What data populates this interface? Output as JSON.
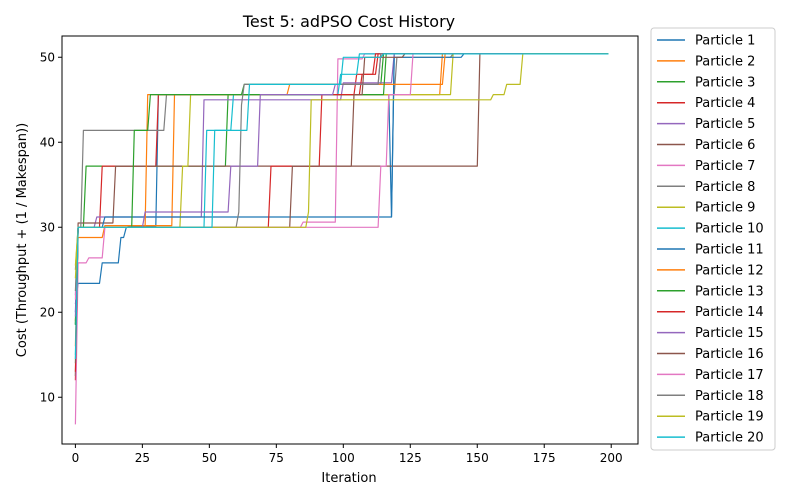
{
  "chart_data": {
    "type": "line",
    "title": "Test 5: adPSO Cost History",
    "xlabel": "Iteration",
    "ylabel": "Cost (Throughput + (1 / Makespan))",
    "xlim": [
      -5,
      210
    ],
    "ylim": [
      4.5,
      52.5
    ],
    "xticks": [
      0,
      25,
      50,
      75,
      100,
      125,
      150,
      175,
      200
    ],
    "yticks": [
      10,
      20,
      30,
      40,
      50
    ],
    "grid": false,
    "legend_position": "outside-right",
    "series": [
      {
        "name": "Particle 1",
        "color": "#1f77b4",
        "points": [
          [
            0,
            21
          ],
          [
            1,
            23.4
          ],
          [
            9,
            23.4
          ],
          [
            10,
            25.8
          ],
          [
            16,
            25.8
          ],
          [
            17,
            28.8
          ],
          [
            18,
            28.8
          ],
          [
            19,
            30
          ],
          [
            20,
            30.1
          ],
          [
            30,
            30.1
          ],
          [
            31,
            45.6
          ],
          [
            117,
            45.6
          ],
          [
            118,
            31.2
          ],
          [
            119,
            50.4
          ],
          [
            199,
            50.4
          ]
        ]
      },
      {
        "name": "Particle 2",
        "color": "#ff7f0e",
        "points": [
          [
            0,
            19
          ],
          [
            1,
            28.8
          ],
          [
            10,
            28.8
          ],
          [
            11,
            30.2
          ],
          [
            36,
            30.2
          ],
          [
            37,
            45.6
          ],
          [
            136,
            45.6
          ],
          [
            137,
            50.4
          ],
          [
            199,
            50.4
          ]
        ]
      },
      {
        "name": "Particle 3",
        "color": "#2ca02c",
        "points": [
          [
            0,
            18.6
          ],
          [
            1,
            30
          ],
          [
            3,
            30
          ],
          [
            4,
            37.2
          ],
          [
            56,
            37.2
          ],
          [
            57,
            45.6
          ],
          [
            62,
            45.6
          ],
          [
            63,
            46.8
          ],
          [
            114,
            46.8
          ],
          [
            115,
            50.4
          ],
          [
            199,
            50.4
          ]
        ]
      },
      {
        "name": "Particle 4",
        "color": "#d62728",
        "points": [
          [
            0,
            12
          ],
          [
            1,
            30
          ],
          [
            9,
            30
          ],
          [
            10,
            37.2
          ],
          [
            30,
            37.2
          ],
          [
            31,
            45.6
          ],
          [
            104,
            45.6
          ],
          [
            105,
            48
          ],
          [
            112,
            48
          ],
          [
            113,
            50.4
          ],
          [
            199,
            50.4
          ]
        ]
      },
      {
        "name": "Particle 5",
        "color": "#9467bd",
        "points": [
          [
            0,
            22
          ],
          [
            1,
            30
          ],
          [
            7,
            30
          ],
          [
            8,
            31.2
          ],
          [
            47,
            31.2
          ],
          [
            48,
            45
          ],
          [
            99,
            45
          ],
          [
            100,
            47
          ],
          [
            118,
            47
          ],
          [
            119,
            50.4
          ],
          [
            199,
            50.4
          ]
        ]
      },
      {
        "name": "Particle 6",
        "color": "#8c564b",
        "points": [
          [
            0,
            12.5
          ],
          [
            1,
            30.5
          ],
          [
            14,
            30.5
          ],
          [
            15,
            37.2
          ],
          [
            150,
            37.2
          ],
          [
            151,
            50.4
          ],
          [
            199,
            50.4
          ]
        ]
      },
      {
        "name": "Particle 7",
        "color": "#e377c2",
        "points": [
          [
            0,
            6.8
          ],
          [
            1,
            25.8
          ],
          [
            4,
            25.8
          ],
          [
            5,
            26.4
          ],
          [
            10,
            26.4
          ],
          [
            11,
            30
          ],
          [
            84,
            30
          ],
          [
            85,
            30.6
          ],
          [
            97,
            30.6
          ],
          [
            98,
            49.8
          ],
          [
            107,
            49.8
          ],
          [
            108,
            50.4
          ],
          [
            199,
            50.4
          ]
        ]
      },
      {
        "name": "Particle 8",
        "color": "#7f7f7f",
        "points": [
          [
            0,
            25
          ],
          [
            1,
            30
          ],
          [
            2,
            30
          ],
          [
            3,
            41.4
          ],
          [
            33,
            41.4
          ],
          [
            34,
            45.6
          ],
          [
            119,
            45.6
          ],
          [
            120,
            50
          ],
          [
            140,
            50
          ],
          [
            141,
            50.4
          ],
          [
            199,
            50.4
          ]
        ]
      },
      {
        "name": "Particle 9",
        "color": "#bcbd22",
        "points": [
          [
            0,
            25.5
          ],
          [
            1,
            30
          ],
          [
            39,
            30
          ],
          [
            40,
            37.2
          ],
          [
            42,
            37.2
          ],
          [
            43,
            45.6
          ],
          [
            140,
            45.6
          ],
          [
            141,
            50.4
          ],
          [
            199,
            50.4
          ]
        ]
      },
      {
        "name": "Particle 10",
        "color": "#17becf",
        "points": [
          [
            0,
            15
          ],
          [
            1,
            30
          ],
          [
            48,
            30
          ],
          [
            49,
            41.4
          ],
          [
            58,
            41.4
          ],
          [
            59,
            45.6
          ],
          [
            98,
            45.6
          ],
          [
            99,
            48
          ],
          [
            105,
            48
          ],
          [
            106,
            50.4
          ],
          [
            199,
            50.4
          ]
        ]
      },
      {
        "name": "Particle 11",
        "color": "#1f77b4",
        "points": [
          [
            0,
            20
          ],
          [
            1,
            30
          ],
          [
            10,
            30
          ],
          [
            11,
            31.2
          ],
          [
            118,
            31.2
          ],
          [
            119,
            50
          ],
          [
            144,
            50
          ],
          [
            145,
            50.4
          ],
          [
            199,
            50.4
          ]
        ]
      },
      {
        "name": "Particle 12",
        "color": "#ff7f0e",
        "points": [
          [
            0,
            16
          ],
          [
            1,
            30
          ],
          [
            26,
            30
          ],
          [
            27,
            45.6
          ],
          [
            79,
            45.6
          ],
          [
            80,
            46.8
          ],
          [
            137,
            46.8
          ],
          [
            138,
            50.4
          ],
          [
            199,
            50.4
          ]
        ]
      },
      {
        "name": "Particle 13",
        "color": "#2ca02c",
        "points": [
          [
            0,
            18.5
          ],
          [
            1,
            30
          ],
          [
            21,
            30
          ],
          [
            22,
            41.4
          ],
          [
            27,
            41.4
          ],
          [
            28,
            45.6
          ],
          [
            115,
            45.6
          ],
          [
            116,
            50.4
          ],
          [
            199,
            50.4
          ]
        ]
      },
      {
        "name": "Particle 14",
        "color": "#d62728",
        "points": [
          [
            0,
            13
          ],
          [
            1,
            30
          ],
          [
            72,
            30
          ],
          [
            73,
            37.2
          ],
          [
            91,
            37.2
          ],
          [
            92,
            45.6
          ],
          [
            106,
            45.6
          ],
          [
            107,
            48
          ],
          [
            111,
            48
          ],
          [
            112,
            50.4
          ],
          [
            199,
            50.4
          ]
        ]
      },
      {
        "name": "Particle 15",
        "color": "#9467bd",
        "points": [
          [
            0,
            19.5
          ],
          [
            1,
            30
          ],
          [
            25,
            30
          ],
          [
            26,
            31.8
          ],
          [
            57,
            31.8
          ],
          [
            58,
            37.2
          ],
          [
            68,
            37.2
          ],
          [
            69,
            45.6
          ],
          [
            96,
            45.6
          ],
          [
            97,
            46.8
          ],
          [
            113,
            46.8
          ],
          [
            114,
            50.4
          ],
          [
            199,
            50.4
          ]
        ]
      },
      {
        "name": "Particle 16",
        "color": "#8c564b",
        "points": [
          [
            0,
            14
          ],
          [
            1,
            30
          ],
          [
            80,
            30
          ],
          [
            81,
            37.2
          ],
          [
            103,
            37.2
          ],
          [
            104,
            45.6
          ],
          [
            107,
            45.6
          ],
          [
            108,
            50
          ],
          [
            122,
            50
          ],
          [
            123,
            50.4
          ],
          [
            199,
            50.4
          ]
        ]
      },
      {
        "name": "Particle 17",
        "color": "#e377c2",
        "points": [
          [
            0,
            21.5
          ],
          [
            1,
            30
          ],
          [
            113,
            30
          ],
          [
            114,
            37.2
          ],
          [
            116,
            37.2
          ],
          [
            117,
            45.6
          ],
          [
            125,
            45.6
          ],
          [
            126,
            50.4
          ],
          [
            199,
            50.4
          ]
        ]
      },
      {
        "name": "Particle 18",
        "color": "#7f7f7f",
        "points": [
          [
            0,
            22.5
          ],
          [
            1,
            30
          ],
          [
            60,
            30
          ],
          [
            61,
            31.8
          ],
          [
            62,
            44.4
          ],
          [
            63,
            46.8
          ],
          [
            113,
            46.8
          ],
          [
            114,
            50.4
          ],
          [
            199,
            50.4
          ]
        ]
      },
      {
        "name": "Particle 19",
        "color": "#bcbd22",
        "points": [
          [
            0,
            24
          ],
          [
            1,
            30
          ],
          [
            86,
            30
          ],
          [
            87,
            31.8
          ],
          [
            88,
            45
          ],
          [
            155,
            45
          ],
          [
            156,
            45.6
          ],
          [
            160,
            45.6
          ],
          [
            161,
            46.8
          ],
          [
            166,
            46.8
          ],
          [
            167,
            50.4
          ],
          [
            199,
            50.4
          ]
        ]
      },
      {
        "name": "Particle 20",
        "color": "#17becf",
        "points": [
          [
            0,
            14.5
          ],
          [
            1,
            30
          ],
          [
            51,
            30
          ],
          [
            52,
            41.4
          ],
          [
            64,
            41.4
          ],
          [
            65,
            46.8
          ],
          [
            99,
            46.8
          ],
          [
            100,
            50
          ],
          [
            114,
            50
          ],
          [
            115,
            50.4
          ],
          [
            199,
            50.4
          ]
        ]
      }
    ]
  }
}
